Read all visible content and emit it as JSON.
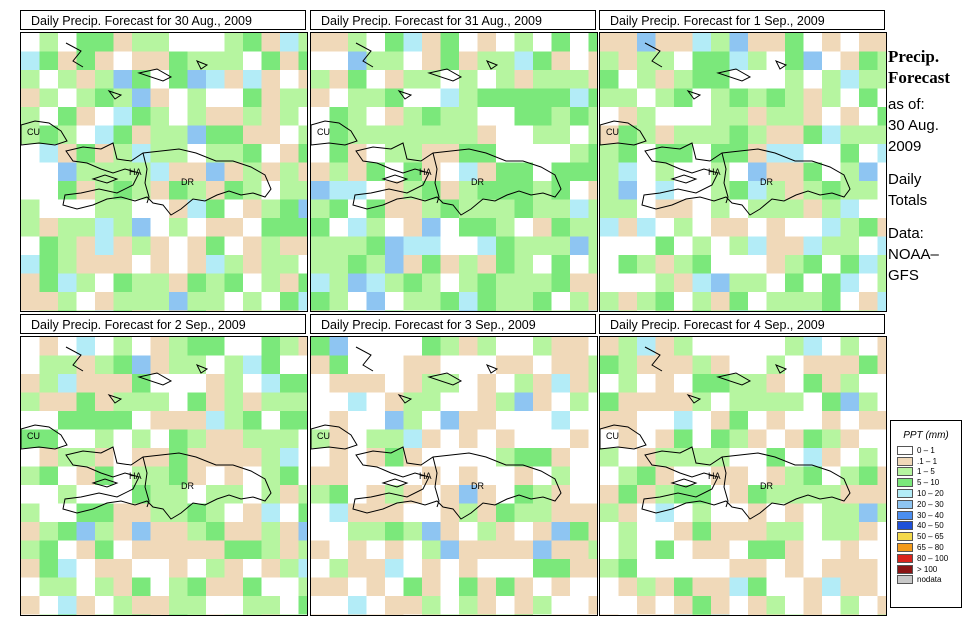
{
  "panels": [
    {
      "title": "Daily Precip. Forecast for  30 Aug., 2009",
      "seed": 11,
      "wet": 0.55
    },
    {
      "title": "Daily Precip. Forecast for  31 Aug., 2009",
      "seed": 23,
      "wet": 0.62
    },
    {
      "title": "Daily Precip. Forecast for  1 Sep., 2009",
      "seed": 37,
      "wet": 0.55
    },
    {
      "title": "Daily Precip. Forecast for  2 Sep., 2009",
      "seed": 41,
      "wet": 0.55
    },
    {
      "title": "Daily Precip. Forecast for  3 Sep., 2009",
      "seed": 53,
      "wet": 0.25
    },
    {
      "title": "Daily Precip. Forecast for  4 Sep., 2009",
      "seed": 67,
      "wet": 0.35
    }
  ],
  "map_labels": {
    "cuba": "CU",
    "haiti": "HA",
    "dominican_republic": "DR"
  },
  "sidebar": {
    "title_line1": "Precip.",
    "title_line2": "Forecast",
    "asof": "as of:",
    "date_line1": "30 Aug.",
    "date_line2": "2009",
    "daily_line1": "Daily",
    "daily_line2": "Totals",
    "data_line1": "Data:",
    "data_line2": "NOAA–",
    "data_line3": "GFS"
  },
  "legend": {
    "title": "PPT (mm)",
    "items": [
      {
        "label": "0 – 1",
        "color": "#ffffff"
      },
      {
        "label": ".1 – 1",
        "color": "#f0d9b9"
      },
      {
        "label": "1 – 5",
        "color": "#b6f5a0"
      },
      {
        "label": "5 – 10",
        "color": "#7be87b"
      },
      {
        "label": "10 – 20",
        "color": "#b3ecf7"
      },
      {
        "label": "20 – 30",
        "color": "#8ec5f2"
      },
      {
        "label": "30 – 40",
        "color": "#4b8ef0"
      },
      {
        "label": "40 – 50",
        "color": "#1e50d8"
      },
      {
        "label": "50 – 65",
        "color": "#f4d94a"
      },
      {
        "label": "65 – 80",
        "color": "#f39a1a"
      },
      {
        "label": "80 – 100",
        "color": "#d9241c"
      },
      {
        "label": "> 100",
        "color": "#8a1414"
      },
      {
        "label": "nodata",
        "color": "#c8c8c8"
      }
    ]
  }
}
